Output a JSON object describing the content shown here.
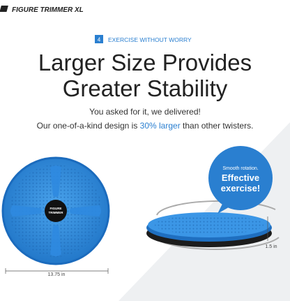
{
  "logo": "FIGURE TRIMMER XL",
  "section": {
    "number": "4",
    "label": "EXERCISE WITHOUT WORRY"
  },
  "headline": [
    "Larger Size Provides",
    "Greater Stability"
  ],
  "intro": "You asked for it, we delivered!",
  "description": {
    "before": "Our one-of-a-kind design is ",
    "highlight": "30% larger",
    "after": " than other twisters."
  },
  "bubble": {
    "subtitle": "Smooth rotation.",
    "title": [
      "Effective",
      "exercise!"
    ]
  },
  "product_label": [
    "FIGURE",
    "TRIMMER"
  ],
  "dimensions": {
    "diameter": "13.75 in",
    "height": "1.5 in"
  }
}
